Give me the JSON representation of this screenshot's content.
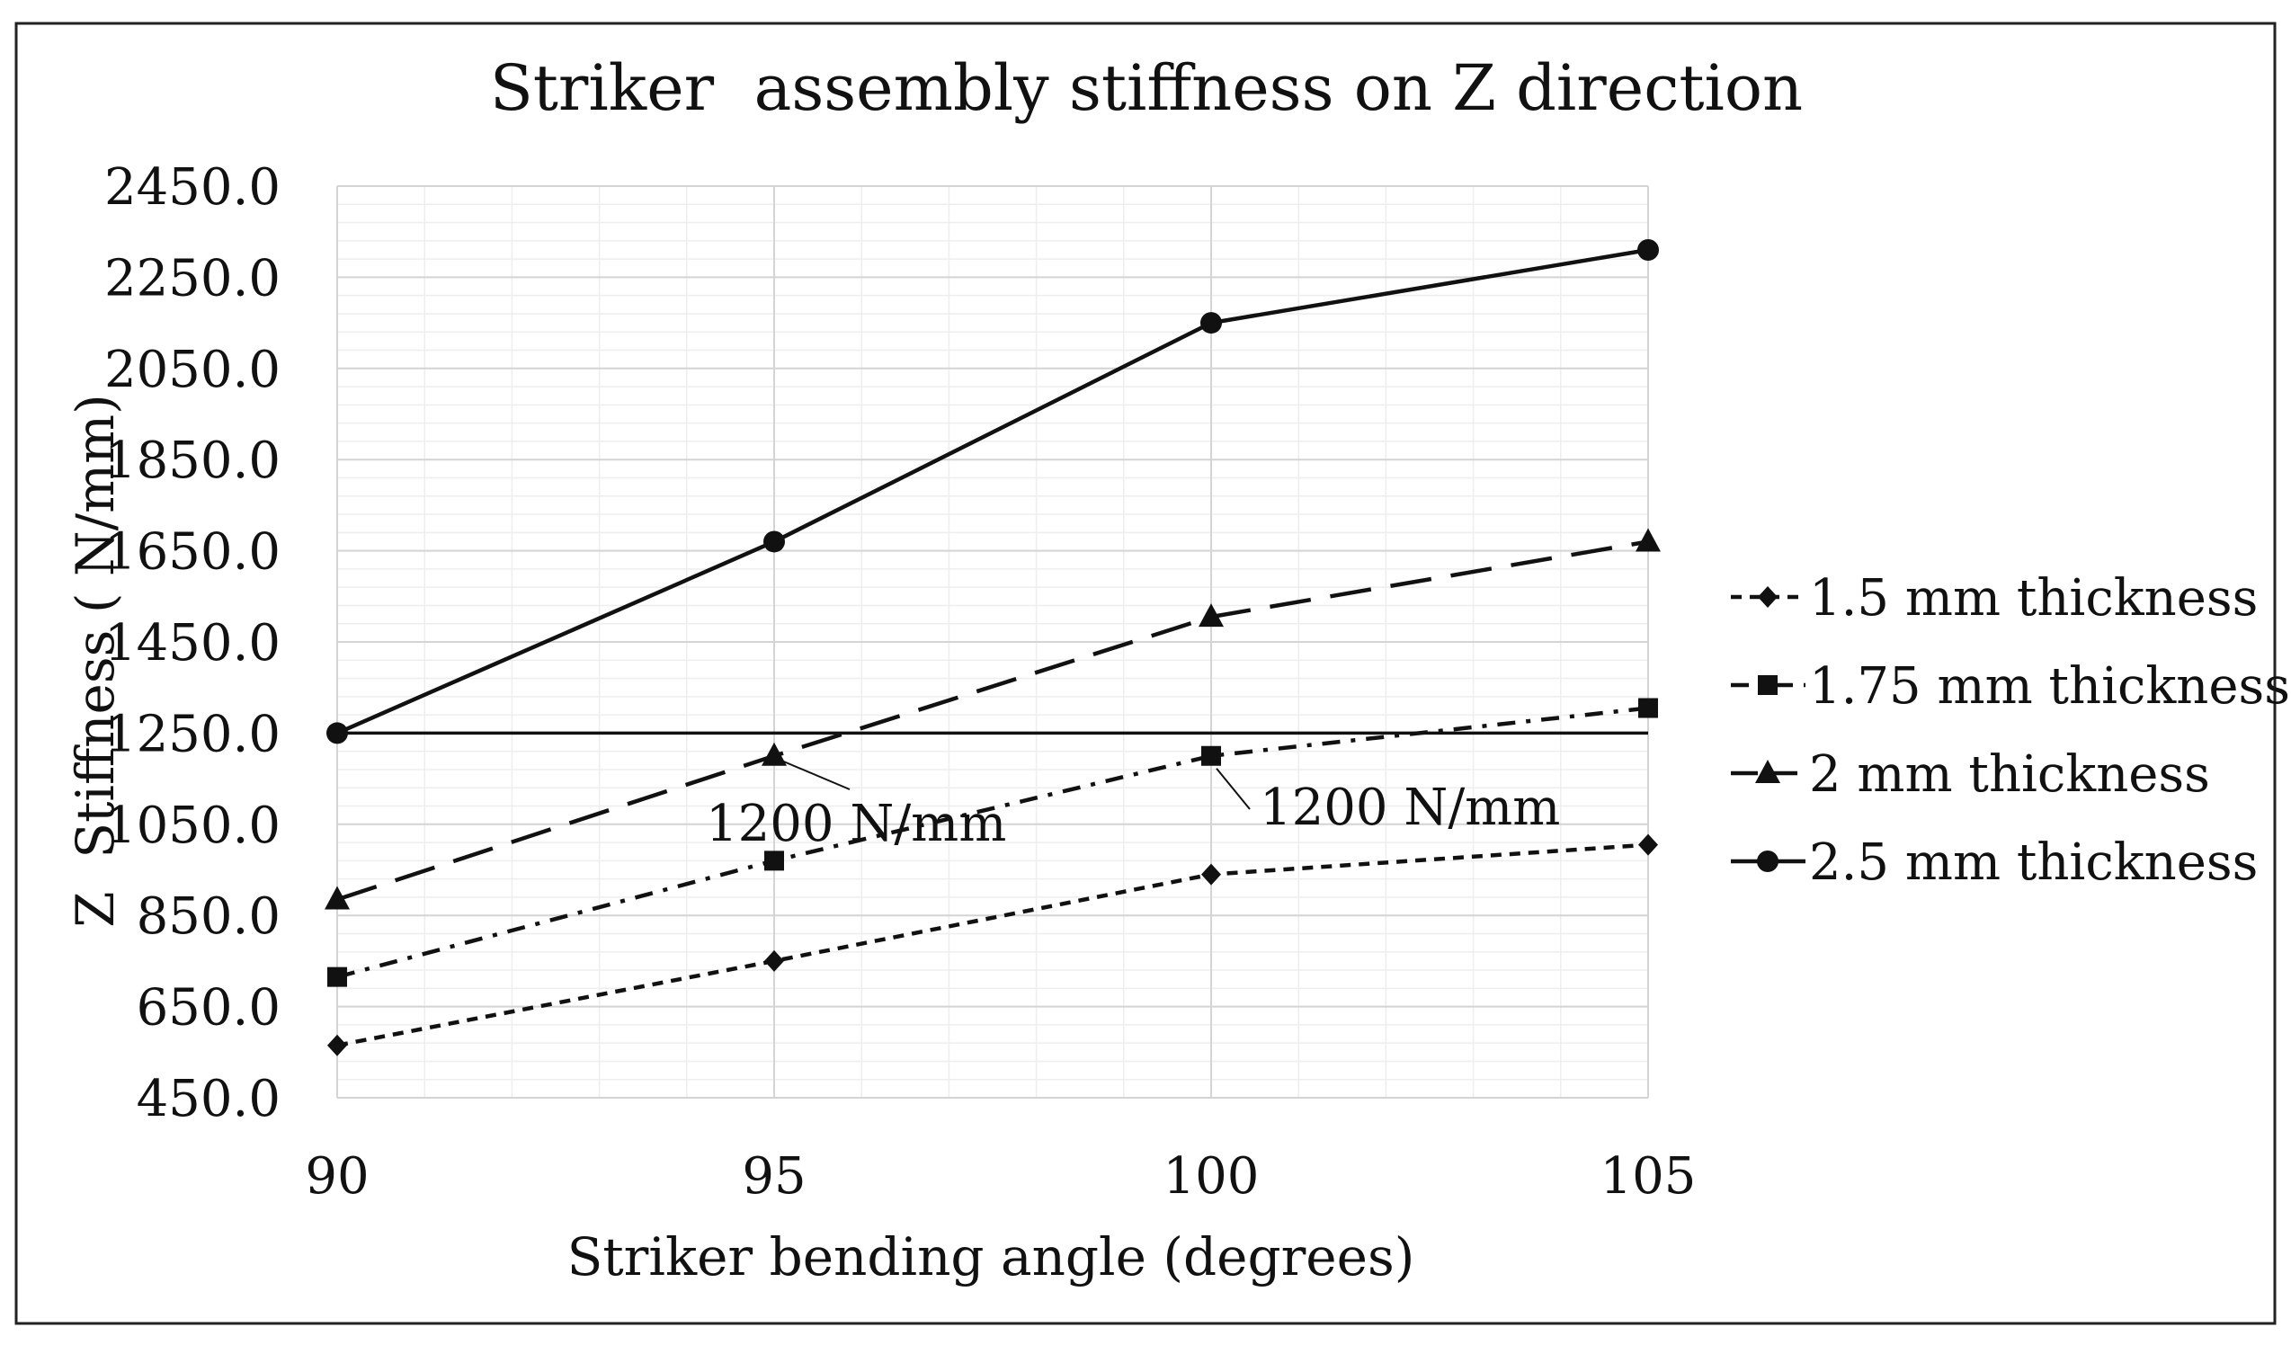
{
  "chart_data": {
    "type": "line",
    "title": "Striker  assembly stiffness on Z direction",
    "xlabel": "Striker bending angle (degrees)",
    "ylabel": "Z  Stiffness ( N/mm)",
    "x": [
      90,
      95,
      100,
      105
    ],
    "x_ticks": [
      "90",
      "95",
      "100",
      "105"
    ],
    "ylim": [
      450,
      2450
    ],
    "y_ticks": [
      "450.0",
      "650.0",
      "850.0",
      "1050.0",
      "1250.0",
      "1450.0",
      "1650.0",
      "1850.0",
      "2050.0",
      "2250.0",
      "2450.0"
    ],
    "grid": true,
    "legend_position": "right",
    "series": [
      {
        "name": "1.5 mm thickness",
        "values": [
          565,
          750,
          940,
          1005
        ],
        "marker": "diamond",
        "dash": "short-dash"
      },
      {
        "name": "1.75 mm thickness",
        "values": [
          715,
          970,
          1200,
          1305
        ],
        "marker": "square",
        "dash": "dash-dot"
      },
      {
        "name": "2 mm thickness",
        "values": [
          885,
          1200,
          1505,
          1670
        ],
        "marker": "triangle",
        "dash": "long-dash"
      },
      {
        "name": "2.5 mm thickness",
        "values": [
          1250,
          1670,
          2150,
          2310
        ],
        "marker": "circle",
        "dash": "solid"
      }
    ],
    "reference_line": {
      "y": 1250
    },
    "annotations": [
      {
        "text": "1200 N/mm",
        "series": "2 mm thickness",
        "x": 95,
        "y": 1200
      },
      {
        "text": "1200 N/mm",
        "series": "1.75 mm thickness",
        "x": 100,
        "y": 1200
      }
    ]
  }
}
